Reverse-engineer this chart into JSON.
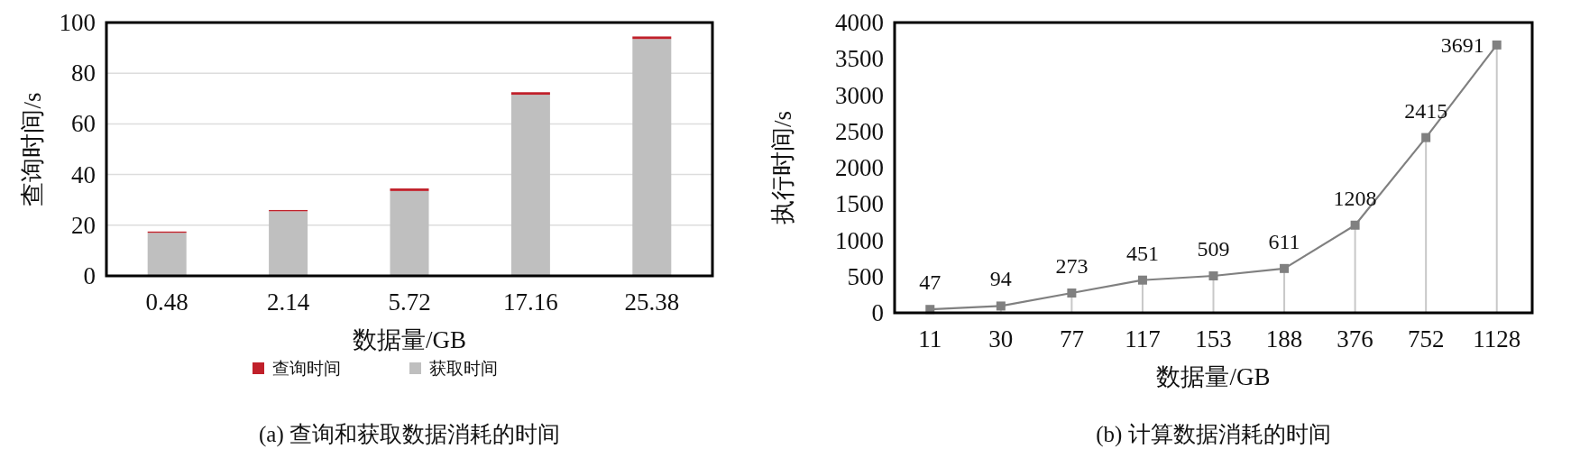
{
  "chart_data": [
    {
      "type": "bar",
      "title": "(a) 查询和获取数据消耗的时间",
      "xlabel": "数据量/GB",
      "ylabel": "查询时间/s",
      "categories": [
        "0.48",
        "2.14",
        "5.72",
        "17.16",
        "25.38"
      ],
      "stacked": true,
      "ylim": [
        0,
        100
      ],
      "yticks": [
        0,
        20,
        40,
        60,
        80,
        100
      ],
      "grid": "y",
      "legend": "bottom",
      "series": [
        {
          "name": "获取时间",
          "color": "#bfbfbf",
          "values": [
            17,
            25.5,
            33.5,
            71.5,
            93.5
          ]
        },
        {
          "name": "查询时间",
          "color": "#c0202a",
          "values": [
            0.5,
            0.5,
            1,
            1,
            1
          ]
        }
      ]
    },
    {
      "type": "line",
      "title": "(b) 计算数据消耗的时间",
      "xlabel": "数据量/GB",
      "ylabel": "执行时间/s",
      "categories": [
        "11",
        "30",
        "77",
        "117",
        "153",
        "188",
        "376",
        "752",
        "1128"
      ],
      "ylim": [
        0,
        4000
      ],
      "yticks": [
        0,
        500,
        1000,
        1500,
        2000,
        2500,
        3000,
        3500,
        4000
      ],
      "marker": "square",
      "data_labels": true,
      "series": [
        {
          "color": "#808080",
          "values": [
            47,
            94,
            273,
            451,
            509,
            611,
            1208,
            2415,
            3691
          ]
        }
      ]
    }
  ]
}
